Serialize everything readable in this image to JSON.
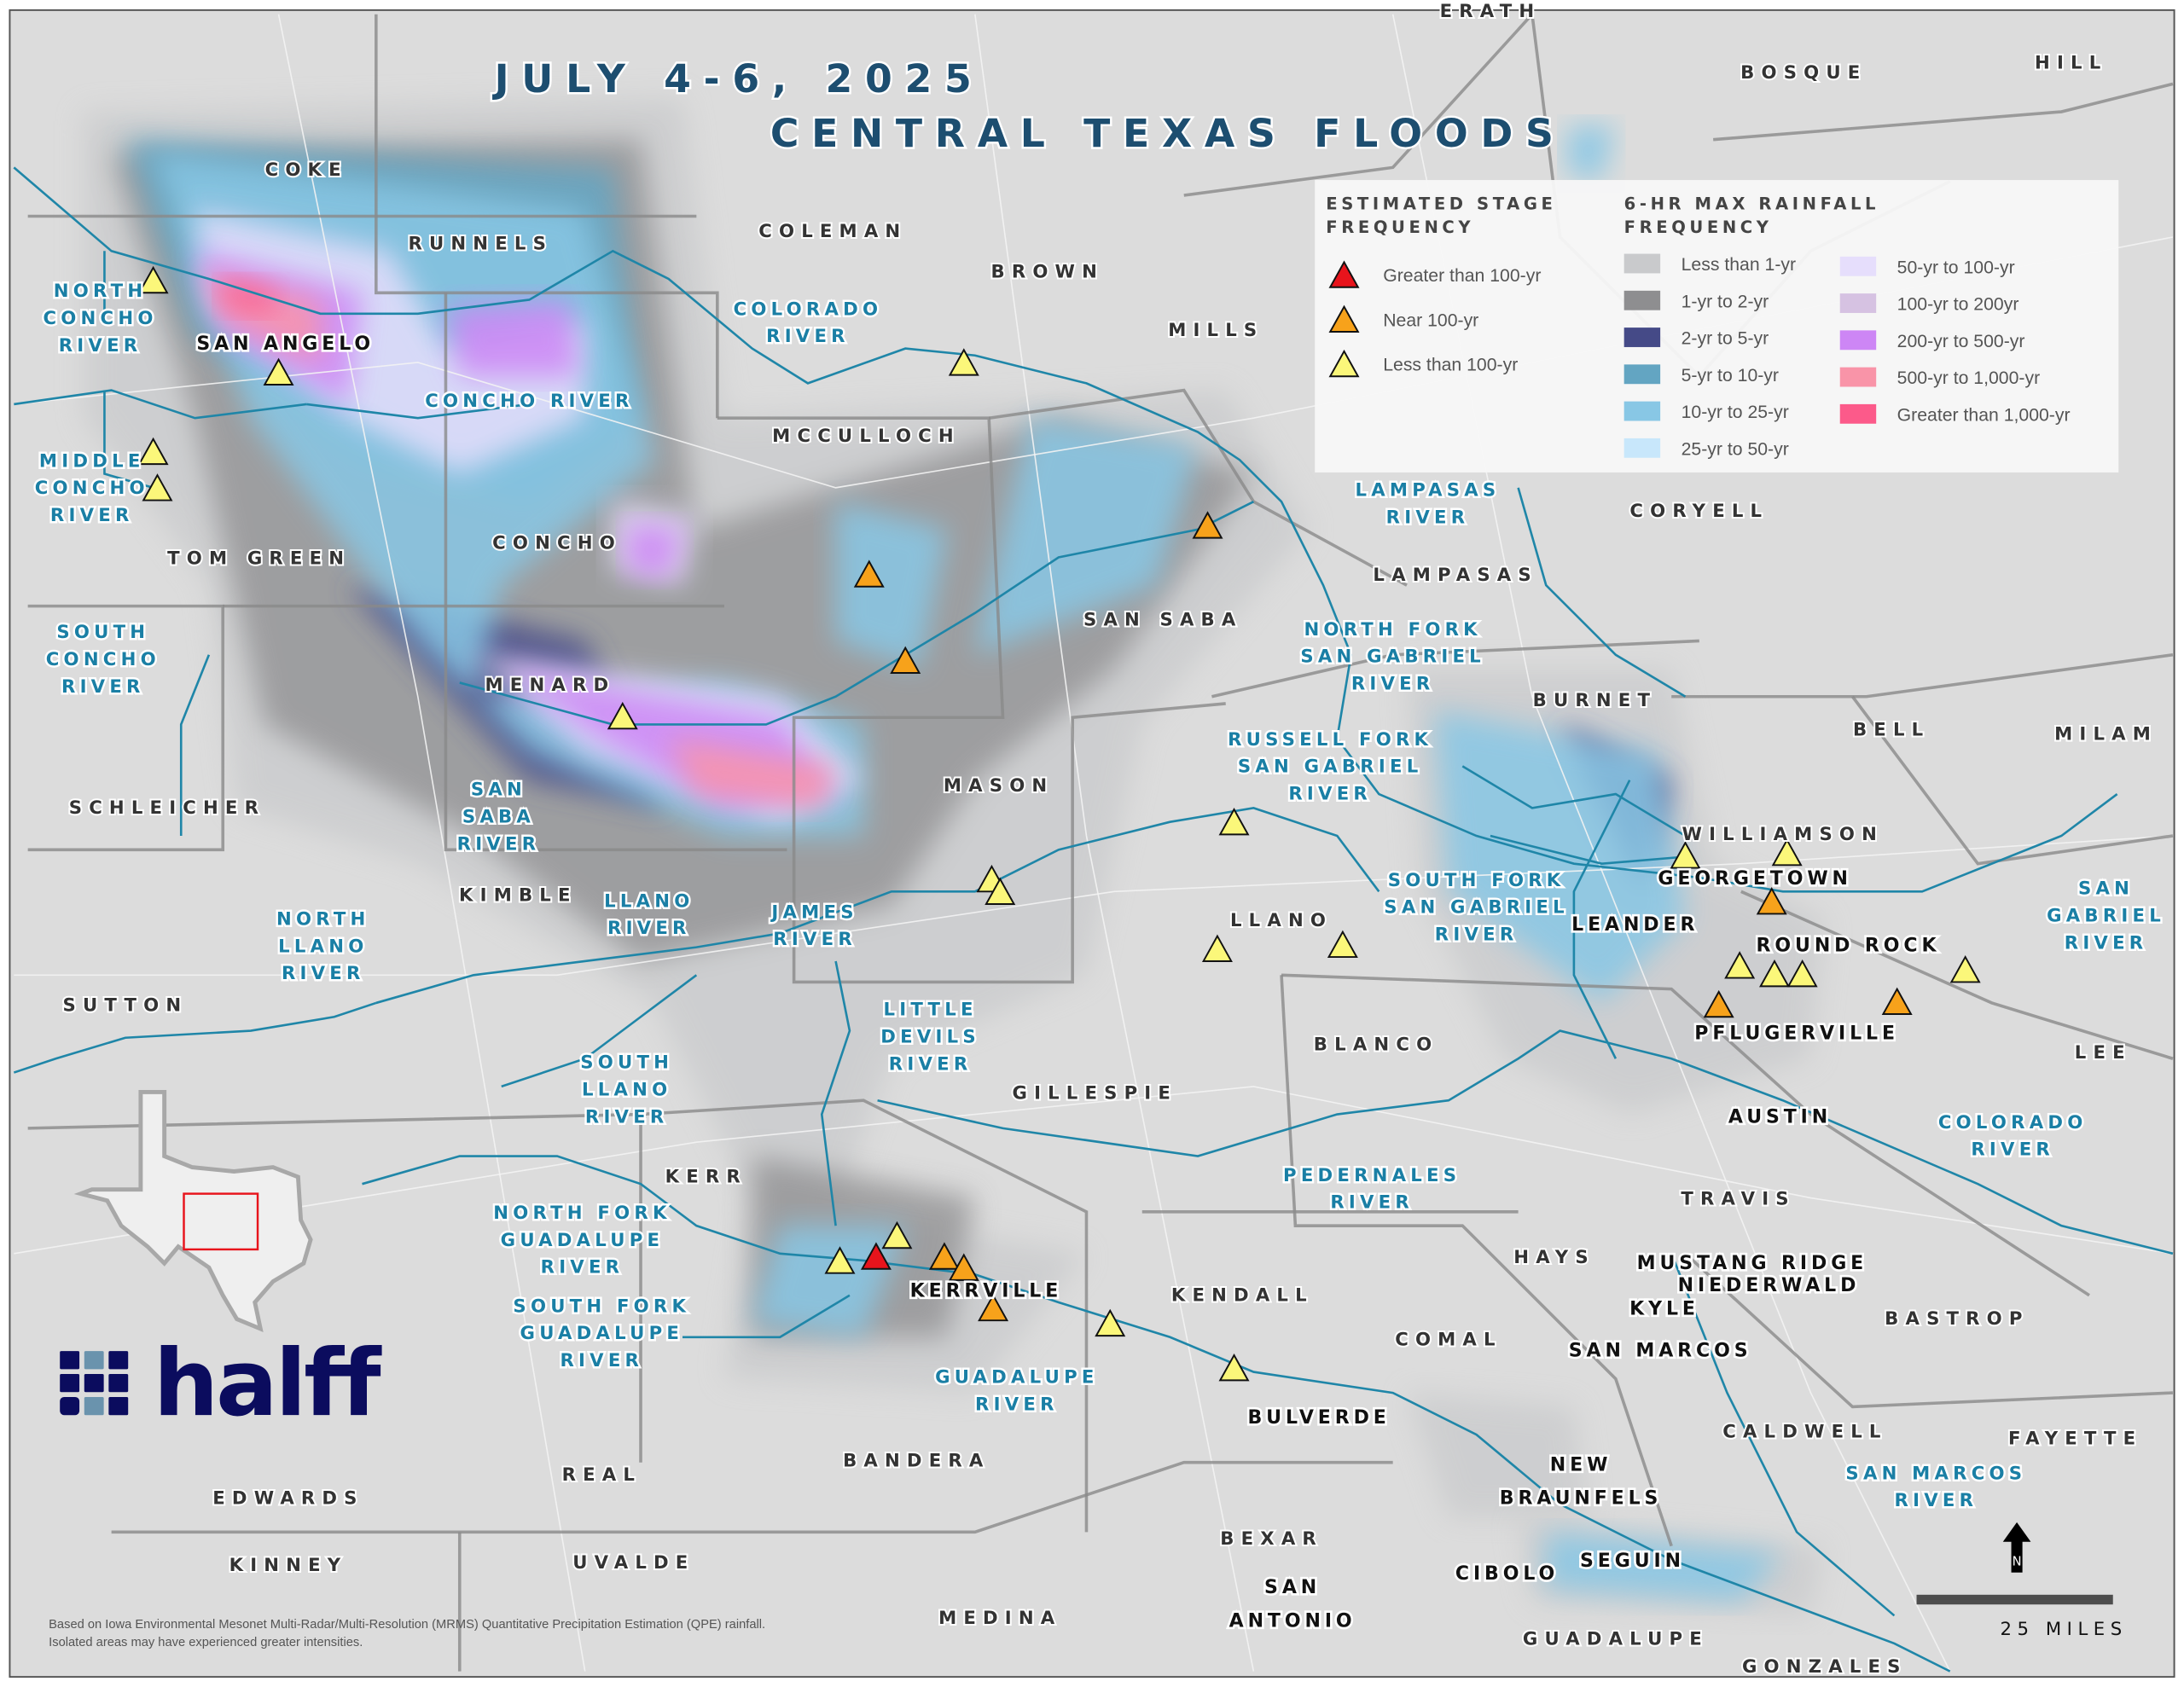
{
  "title": {
    "line1": "JULY 4-6, 2025",
    "line2": "CENTRAL TEXAS FLOODS"
  },
  "legend": {
    "stage_heading": [
      "ESTIMATED STAGE",
      "FREQUENCY"
    ],
    "stage_items": [
      {
        "key": "gt100",
        "label": "Greater than 100-yr",
        "color": "#e8141c"
      },
      {
        "key": "near100",
        "label": "Near 100-yr",
        "color": "#f7a21b"
      },
      {
        "key": "lt100",
        "label": "Less than 100-yr",
        "color": "#fbf77a"
      }
    ],
    "rain_heading": [
      "6-HR MAX RAINFALL",
      "FREQUENCY"
    ],
    "rain_items": [
      {
        "label": "Less than 1-yr",
        "color": "#c9cacc"
      },
      {
        "label": "1-yr to 2-yr",
        "color": "#8e8e90"
      },
      {
        "label": "2-yr to 5-yr",
        "color": "#454a87"
      },
      {
        "label": "5-yr to 10-yr",
        "color": "#63a5c2"
      },
      {
        "label": "10-yr to 25-yr",
        "color": "#88c7e5"
      },
      {
        "label": "25-yr to 50-yr",
        "color": "#c8e7fb"
      },
      {
        "label": "50-yr to 100-yr",
        "color": "#e6defc"
      },
      {
        "label": "100-yr to 200yr",
        "color": "#d6c2e2"
      },
      {
        "label": "200-yr to 500-yr",
        "color": "#cd86f5"
      },
      {
        "label": "500-yr to 1,000-yr",
        "color": "#f994a8"
      },
      {
        "label": "Greater than 1,000-yr",
        "color": "#fc5a8a"
      }
    ]
  },
  "counties": [
    "ERATH",
    "BOSQUE",
    "HILL",
    "COKE",
    "RUNNELS",
    "COLEMAN",
    "BROWN",
    "MILLS",
    "MCCULLOCH",
    "CORYELL",
    "LAMPASAS",
    "CONCHO",
    "TOM GREEN",
    "SAN SABA",
    "BURNET",
    "BELL",
    "MILAM",
    "MENARD",
    "MASON",
    "WILLIAMSON",
    "SCHLEICHER",
    "KIMBLE",
    "LLANO",
    "SUTTON",
    "BLANCO",
    "LEE",
    "GILLESPIE",
    "KERR",
    "TRAVIS",
    "HAYS",
    "BASTROP",
    "KENDALL",
    "COMAL",
    "CALDWELL",
    "FAYETTE",
    "BANDERA",
    "REAL",
    "EDWARDS",
    "BEXAR",
    "KINNEY",
    "UVALDE",
    "MEDINA",
    "GUADALUPE",
    "GONZALES"
  ],
  "rivers": [
    [
      "NORTH",
      "CONCHO",
      "RIVER"
    ],
    [
      "CONCHO RIVER"
    ],
    [
      "COLORADO",
      "RIVER"
    ],
    [
      "MIDDLE",
      "CONCHO",
      "RIVER"
    ],
    [
      "LAMPASAS",
      "RIVER"
    ],
    [
      "SOUTH",
      "CONCHO",
      "RIVER"
    ],
    [
      "NORTH FORK",
      "SAN GABRIEL",
      "RIVER"
    ],
    [
      "SAN",
      "SABA",
      "RIVER"
    ],
    [
      "RUSSELL FORK",
      "SAN GABRIEL",
      "RIVER"
    ],
    [
      "SOUTH FORK",
      "SAN GABRIEL",
      "RIVER"
    ],
    [
      "LLANO",
      "RIVER"
    ],
    [
      "JAMES",
      "RIVER"
    ],
    [
      "NORTH",
      "LLANO",
      "RIVER"
    ],
    [
      "SAN",
      "GABRIEL",
      "RIVER"
    ],
    [
      "LITTLE",
      "DEVILS",
      "RIVER"
    ],
    [
      "SOUTH",
      "LLANO",
      "RIVER"
    ],
    [
      "COLORADO",
      "RIVER"
    ],
    [
      "PEDERNALES",
      "RIVER"
    ],
    [
      "NORTH FORK",
      "GUADALUPE",
      "RIVER"
    ],
    [
      "SOUTH FORK",
      "GUADALUPE",
      "RIVER"
    ],
    [
      "GUADALUPE",
      "RIVER"
    ],
    [
      "SAN MARCOS",
      "RIVER"
    ]
  ],
  "cities": [
    [
      "SAN ANGELO"
    ],
    [
      "GEORGETOWN"
    ],
    [
      "LEANDER"
    ],
    [
      "ROUND ROCK"
    ],
    [
      "PFLUGERVILLE"
    ],
    [
      "AUSTIN"
    ],
    [
      "MUSTANG RIDGE"
    ],
    [
      "NIEDERWALD"
    ],
    [
      "KYLE"
    ],
    [
      "SAN MARCOS"
    ],
    [
      "KERRVILLE"
    ],
    [
      "BULVERDE"
    ],
    [
      "NEW",
      "BRAUNFELS"
    ],
    [
      "SAN",
      "ANTONIO"
    ],
    [
      "CIBOLO"
    ],
    [
      "SEGUIN"
    ]
  ],
  "note": [
    "Based on Iowa Environmental Mesonet Multi-Radar/Multi-Resolution (MRMS) Quantitative Precipitation Estimation (QPE) rainfall.",
    "Isolated areas may have experienced greater intensities."
  ],
  "scale": {
    "label": "25 MILES"
  },
  "north": {
    "label": "N"
  },
  "logo": {
    "text": "halff",
    "color": "#0b0c5e",
    "accent": "#6a93ad"
  },
  "inset": {
    "highlight_color": "#e8141c"
  }
}
